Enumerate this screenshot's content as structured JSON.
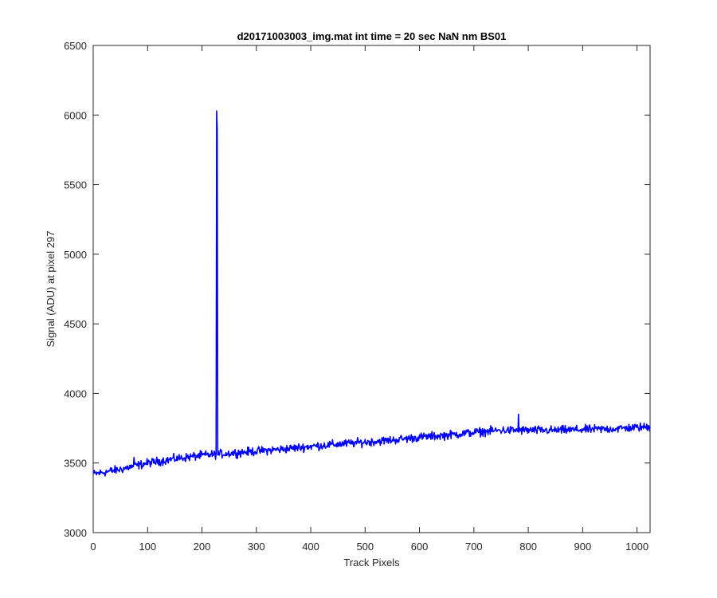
{
  "chart_data": {
    "type": "line",
    "title": "d20171003003_img.mat int time = 20 sec  NaN nm BS01",
    "xlabel": "Track Pixels",
    "ylabel": "Signal (ADU) at pixel 297",
    "xlim": [
      0,
      1024
    ],
    "ylim": [
      3000,
      6500
    ],
    "xticks": [
      0,
      100,
      200,
      300,
      400,
      500,
      600,
      700,
      800,
      900,
      1000
    ],
    "yticks": [
      3000,
      3500,
      4000,
      4500,
      5000,
      5500,
      6000,
      6500
    ],
    "grid": false,
    "series": [
      {
        "color": "#0000ff",
        "noise_amplitude": 25,
        "baseline": {
          "x": [
            0,
            50,
            100,
            150,
            200,
            250,
            300,
            350,
            400,
            450,
            500,
            550,
            600,
            650,
            700,
            750,
            800,
            850,
            900,
            950,
            1024
          ],
          "y": [
            3420,
            3455,
            3500,
            3530,
            3555,
            3570,
            3585,
            3600,
            3620,
            3635,
            3650,
            3665,
            3685,
            3700,
            3720,
            3735,
            3735,
            3735,
            3740,
            3745,
            3760
          ]
        },
        "spikes": [
          {
            "x": 227,
            "y": 6030
          },
          {
            "x": 228,
            "y": 5900
          },
          {
            "x": 782,
            "y": 3850
          },
          {
            "x": 75,
            "y": 3540
          }
        ]
      }
    ]
  }
}
